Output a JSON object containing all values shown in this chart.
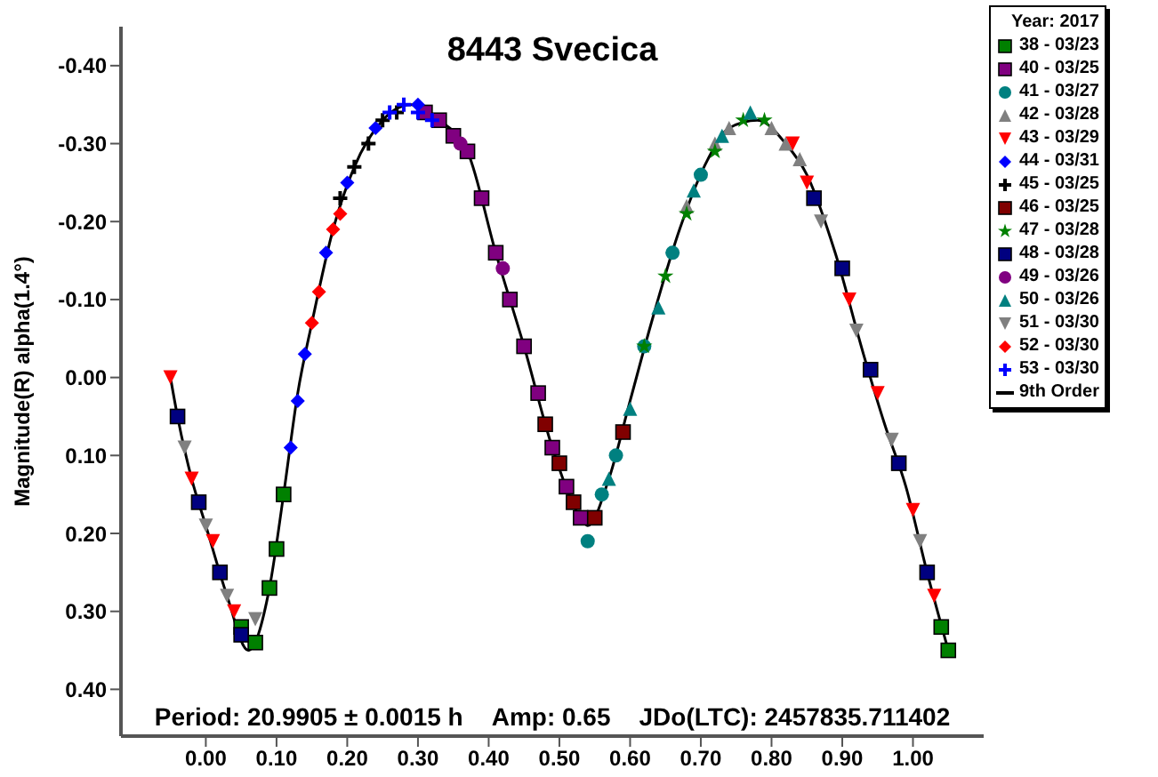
{
  "chart_data": {
    "type": "scatter",
    "title": "8443 Svecica",
    "ylabel": "Magnitude(R) alpha(1.4°)",
    "legend_title": "Year: 2017",
    "legend": "right",
    "annotations": [
      "Period: 20.9905 ± 0.0015 h",
      "Amp: 0.65",
      "JDo(LTC): 2457835.711402"
    ],
    "xlim": [
      -0.12,
      1.1
    ],
    "ylim": [
      0.46,
      -0.45
    ],
    "xticks": [
      {
        "value": 0,
        "label": "0.00"
      },
      {
        "value": 0.1,
        "label": "0.10"
      },
      {
        "value": 0.2,
        "label": "0.20"
      },
      {
        "value": 0.3,
        "label": "0.30"
      },
      {
        "value": 0.4,
        "label": "0.40"
      },
      {
        "value": 0.5,
        "label": "0.50"
      },
      {
        "value": 0.6,
        "label": "0.60"
      },
      {
        "value": 0.7,
        "label": "0.70"
      },
      {
        "value": 0.8,
        "label": "0.80"
      },
      {
        "value": 0.9,
        "label": "0.90"
      },
      {
        "value": 1,
        "label": "1.00"
      }
    ],
    "yticks": [
      {
        "value": -0.4,
        "label": "-0.40"
      },
      {
        "value": -0.3,
        "label": "-0.30"
      },
      {
        "value": -0.2,
        "label": "-0.20"
      },
      {
        "value": -0.1,
        "label": "-0.10"
      },
      {
        "value": 0,
        "label": "0.00"
      },
      {
        "value": 0.1,
        "label": "0.10"
      },
      {
        "value": 0.2,
        "label": "0.20"
      },
      {
        "value": 0.3,
        "label": "0.30"
      },
      {
        "value": 0.4,
        "label": "0.40"
      }
    ],
    "series": [
      {
        "name": "38 - 03/23",
        "color": "#008000",
        "marker": "square",
        "x": [
          0.05,
          0.07,
          0.09,
          0.1,
          0.11,
          1.04,
          1.05
        ],
        "values": [
          0.32,
          0.34,
          0.27,
          0.22,
          0.15,
          0.32,
          0.35
        ]
      },
      {
        "name": "40 - 03/25",
        "color": "#800080",
        "marker": "square",
        "x": [
          0.31,
          0.33,
          0.35,
          0.37,
          0.39,
          0.41,
          0.43,
          0.45,
          0.47,
          0.49,
          0.51,
          0.53
        ],
        "values": [
          -0.34,
          -0.33,
          -0.31,
          -0.29,
          -0.23,
          -0.16,
          -0.1,
          -0.04,
          0.02,
          0.09,
          0.14,
          0.18
        ]
      },
      {
        "name": "41 - 03/27",
        "color": "#008080",
        "marker": "circle",
        "x": [
          0.54,
          0.56,
          0.58,
          0.62,
          0.66,
          0.7
        ],
        "values": [
          0.21,
          0.15,
          0.1,
          -0.04,
          -0.16,
          -0.26
        ]
      },
      {
        "name": "42 - 03/28",
        "color": "#808080",
        "marker": "triangle",
        "x": [
          0.68,
          0.72,
          0.74,
          0.8,
          0.82,
          0.84
        ],
        "values": [
          -0.22,
          -0.3,
          -0.32,
          -0.32,
          -0.3,
          -0.28
        ]
      },
      {
        "name": "43 - 03/29",
        "color": "#ff0000",
        "marker": "triangle-down",
        "x": [
          -0.05,
          -0.02,
          0.01,
          0.04,
          0.83,
          0.85,
          0.91,
          0.95,
          1.0,
          1.03
        ],
        "values": [
          0.0,
          0.13,
          0.21,
          0.3,
          -0.3,
          -0.25,
          -0.1,
          0.02,
          0.17,
          0.28
        ]
      },
      {
        "name": "44 - 03/31",
        "color": "#0000ff",
        "marker": "diamond",
        "x": [
          0.12,
          0.14,
          0.17,
          0.2,
          0.24,
          0.13,
          0.3
        ],
        "values": [
          0.09,
          -0.03,
          -0.16,
          -0.25,
          -0.32,
          0.03,
          -0.35
        ]
      },
      {
        "name": "45 - 03/25",
        "color": "#000000",
        "marker": "cross",
        "x": [
          0.19,
          0.21,
          0.23,
          0.25,
          0.27
        ],
        "values": [
          -0.23,
          -0.27,
          -0.3,
          -0.33,
          -0.34
        ]
      },
      {
        "name": "46 - 03/25",
        "color": "#800000",
        "marker": "square",
        "x": [
          0.48,
          0.5,
          0.52,
          0.55,
          0.59
        ],
        "values": [
          0.06,
          0.11,
          0.16,
          0.18,
          0.07
        ]
      },
      {
        "name": "47 - 03/28",
        "color": "#008000",
        "marker": "star",
        "x": [
          0.62,
          0.65,
          0.68,
          0.72,
          0.76,
          0.79
        ],
        "values": [
          -0.04,
          -0.13,
          -0.21,
          -0.29,
          -0.33,
          -0.33
        ]
      },
      {
        "name": "48 - 03/28",
        "color": "#000080",
        "marker": "square",
        "x": [
          -0.04,
          -0.01,
          0.02,
          0.05,
          0.86,
          0.9,
          0.94,
          0.98,
          1.02
        ],
        "values": [
          0.05,
          0.16,
          0.25,
          0.33,
          -0.23,
          -0.14,
          -0.01,
          0.11,
          0.25
        ]
      },
      {
        "name": "49 - 03/26",
        "color": "#800080",
        "marker": "circle",
        "x": [
          0.36,
          0.42
        ],
        "values": [
          -0.3,
          -0.14
        ]
      },
      {
        "name": "50 - 03/26",
        "color": "#008080",
        "marker": "triangle",
        "x": [
          0.57,
          0.6,
          0.64,
          0.69,
          0.73,
          0.77
        ],
        "values": [
          0.13,
          0.04,
          -0.09,
          -0.24,
          -0.31,
          -0.34
        ]
      },
      {
        "name": "51 - 03/30",
        "color": "#808080",
        "marker": "triangle-down",
        "x": [
          -0.03,
          0.0,
          0.03,
          0.07,
          0.87,
          0.92,
          0.97,
          1.01
        ],
        "values": [
          0.09,
          0.19,
          0.28,
          0.31,
          -0.2,
          -0.06,
          0.08,
          0.21
        ]
      },
      {
        "name": "52 - 03/30",
        "color": "#ff0000",
        "marker": "diamond",
        "x": [
          0.15,
          0.16,
          0.18,
          0.19
        ],
        "values": [
          -0.07,
          -0.11,
          -0.19,
          -0.21
        ]
      },
      {
        "name": "53 - 03/30",
        "color": "#0000ff",
        "marker": "cross",
        "x": [
          0.26,
          0.28,
          0.3,
          0.32
        ],
        "values": [
          -0.34,
          -0.35,
          -0.34,
          -0.33
        ]
      },
      {
        "name": "9th Order",
        "type": "line",
        "color": "#000000",
        "marker": "none",
        "x": [
          -0.05,
          -0.04,
          -0.02,
          0.0,
          0.03,
          0.06,
          0.09,
          0.11,
          0.13,
          0.15,
          0.18,
          0.21,
          0.25,
          0.29,
          0.33,
          0.37,
          0.41,
          0.45,
          0.49,
          0.53,
          0.54,
          0.57,
          0.6,
          0.63,
          0.67,
          0.71,
          0.74,
          0.78,
          0.82,
          0.85,
          0.89,
          0.93,
          0.96,
          0.99,
          1.02,
          1.05
        ],
        "values": [
          0.0,
          0.05,
          0.13,
          0.19,
          0.28,
          0.35,
          0.27,
          0.15,
          0.02,
          -0.07,
          -0.19,
          -0.27,
          -0.33,
          -0.35,
          -0.33,
          -0.29,
          -0.16,
          -0.04,
          0.09,
          0.18,
          0.19,
          0.13,
          0.03,
          -0.07,
          -0.19,
          -0.28,
          -0.32,
          -0.33,
          -0.3,
          -0.26,
          -0.16,
          -0.03,
          0.06,
          0.14,
          0.25,
          0.35
        ]
      }
    ]
  }
}
